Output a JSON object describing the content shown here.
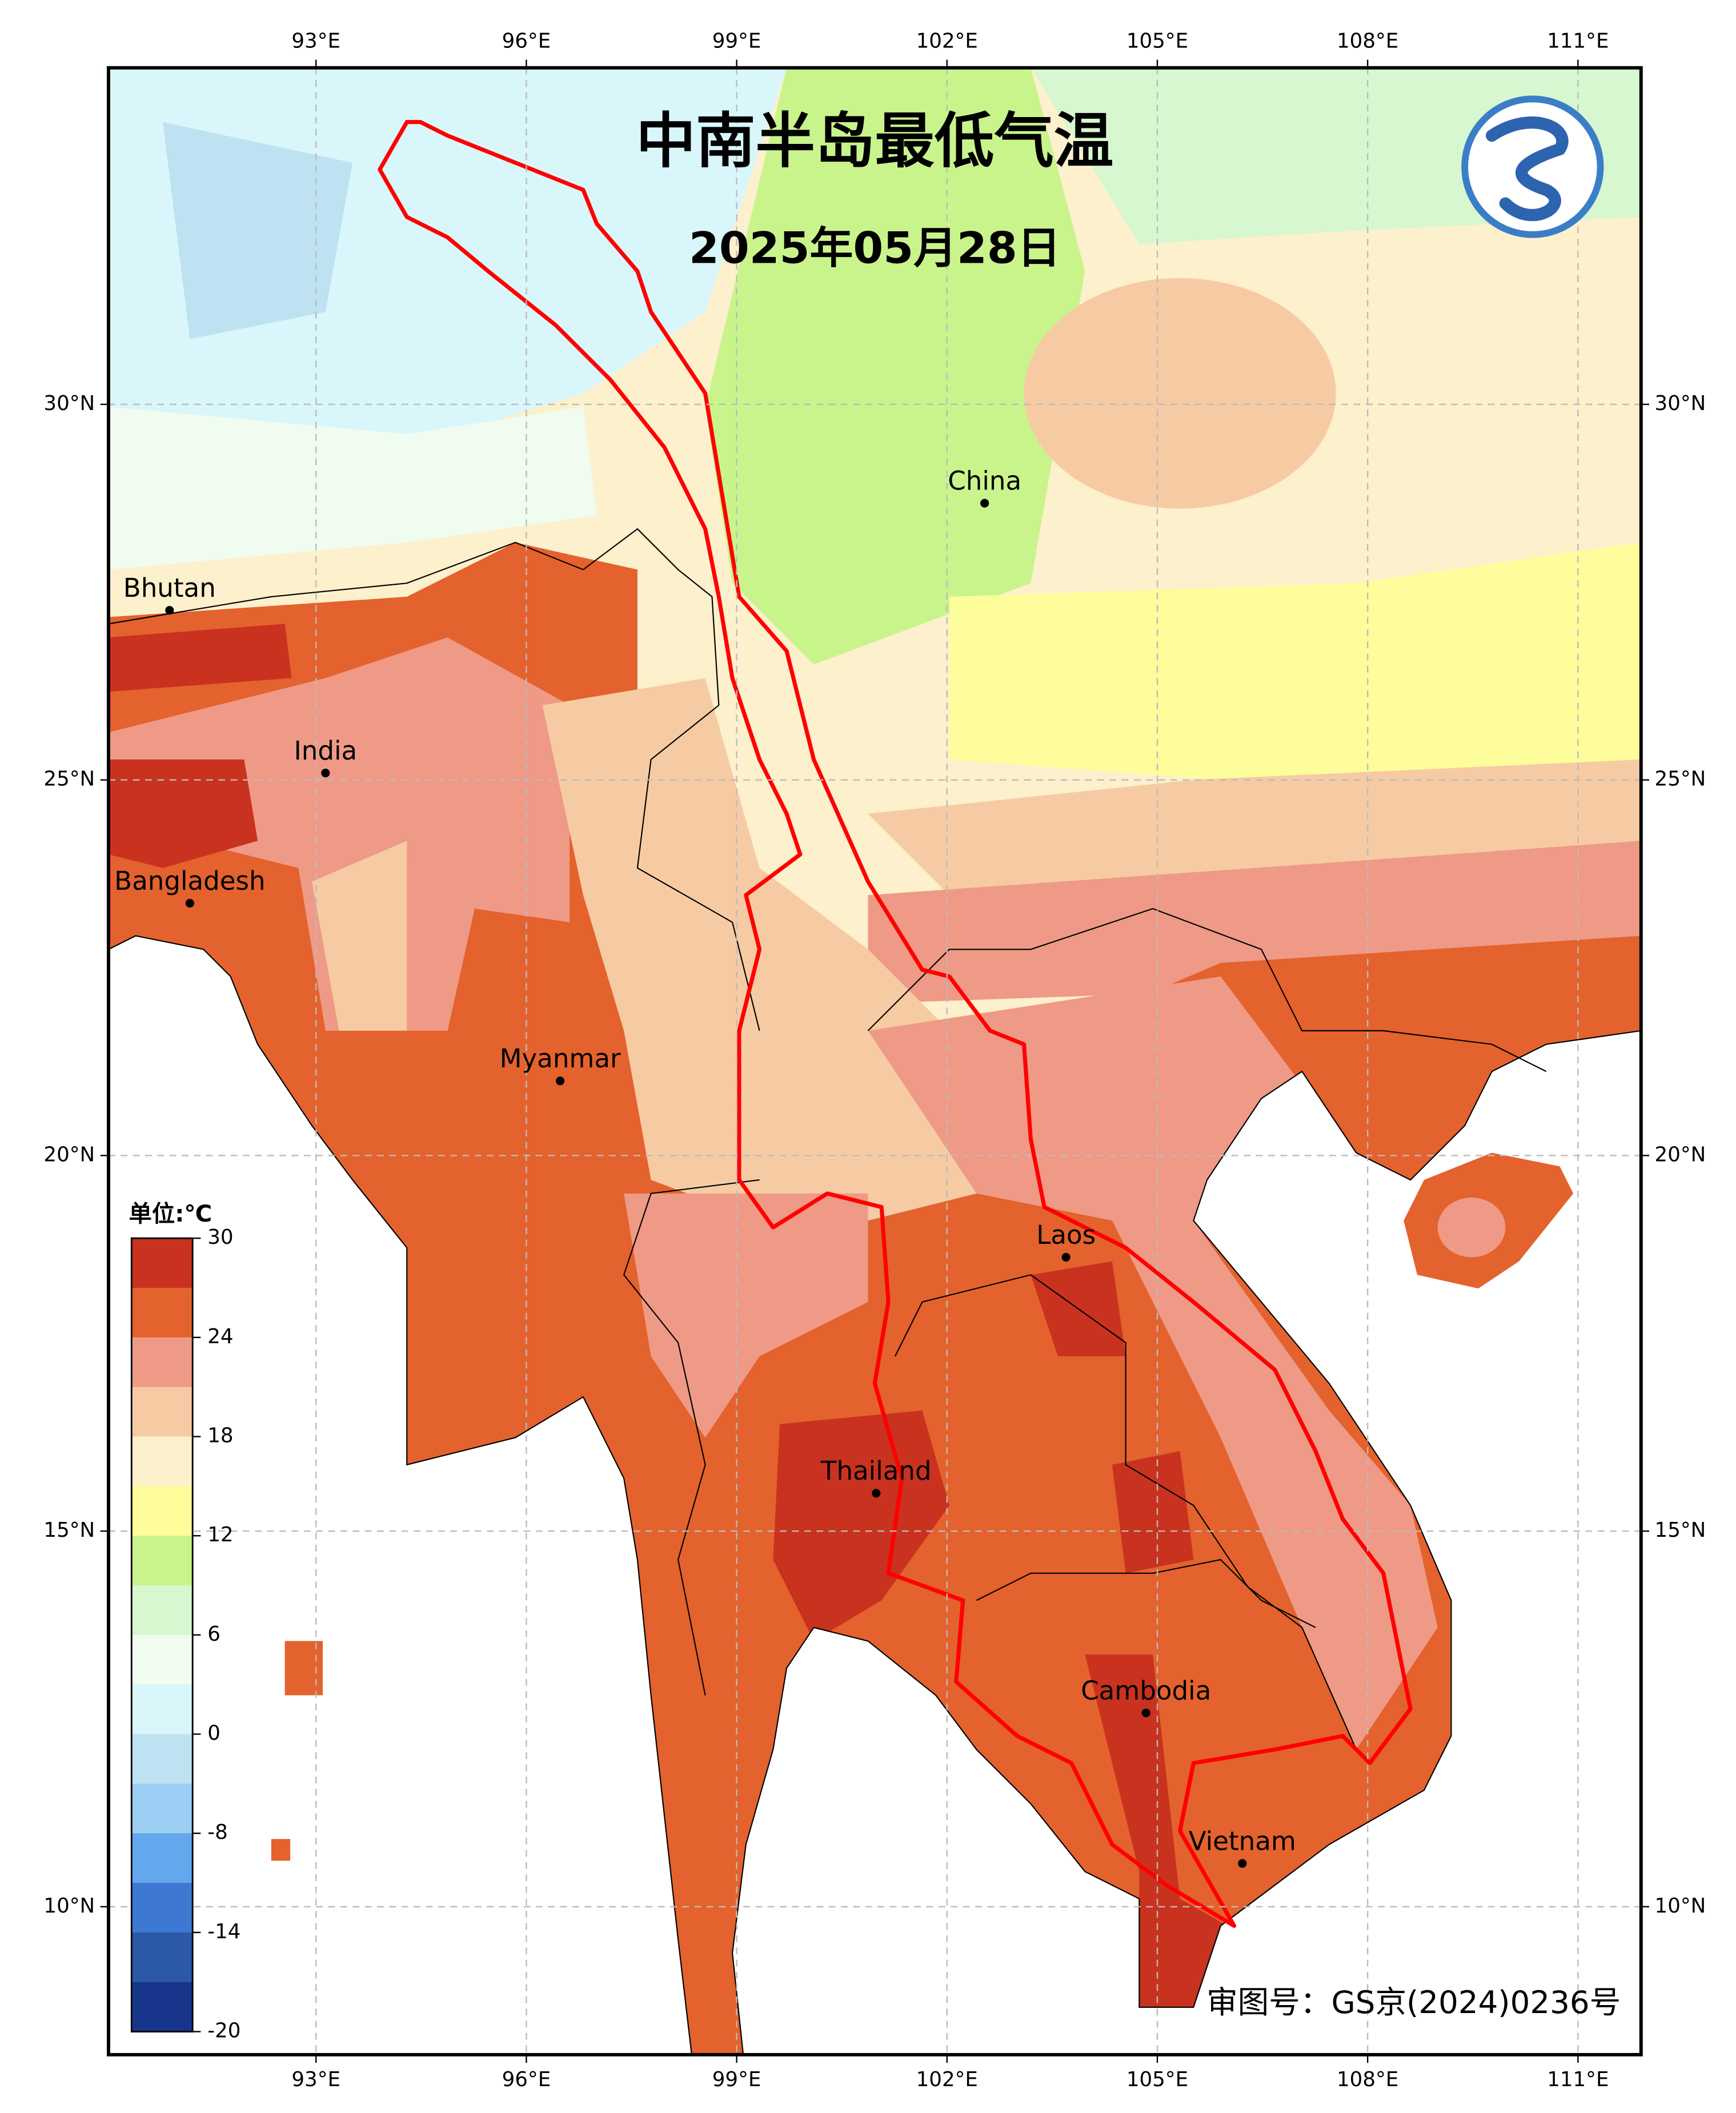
{
  "title": "中南半岛最低气温",
  "subtitle": "2025年05月28日",
  "lonlim": [
    90.04,
    111.9
  ],
  "latlim": [
    8.03,
    34.48
  ],
  "lon_ticks": [
    {
      "value": 93,
      "label": "93°E"
    },
    {
      "value": 96,
      "label": "96°E"
    },
    {
      "value": 99,
      "label": "99°E"
    },
    {
      "value": 102,
      "label": "102°E"
    },
    {
      "value": 105,
      "label": "105°E"
    },
    {
      "value": 108,
      "label": "108°E"
    },
    {
      "value": 111,
      "label": "111°E"
    }
  ],
  "lat_ticks": [
    {
      "value": 10,
      "label": "10°N"
    },
    {
      "value": 15,
      "label": "15°N"
    },
    {
      "value": 20,
      "label": "20°N"
    },
    {
      "value": 25,
      "label": "25°N"
    },
    {
      "value": 30,
      "label": "30°N"
    }
  ],
  "places": [
    "Bhutan",
    "India",
    "Bangladesh",
    "Myanmar",
    "China",
    "Laos",
    "Thailand",
    "Cambodia",
    "Vietnam"
  ],
  "legend": {
    "unit": "单位:℃",
    "ticks": [
      30,
      24,
      18,
      12,
      6,
      0,
      -8,
      -14,
      -20
    ],
    "colors": [
      "#c8321f",
      "#e4622d",
      "#ee9a86",
      "#f6cba4",
      "#fdf0cc",
      "#fdfd9b",
      "#c9f48c",
      "#d7f7d0",
      "#f0fcef",
      "#d9f6fb",
      "#bfe2f2",
      "#9ccff3",
      "#63a7ec",
      "#3d79d2",
      "#2c59a7",
      "#17368b"
    ]
  },
  "note": "审图号：GS京(2024)0236号"
}
